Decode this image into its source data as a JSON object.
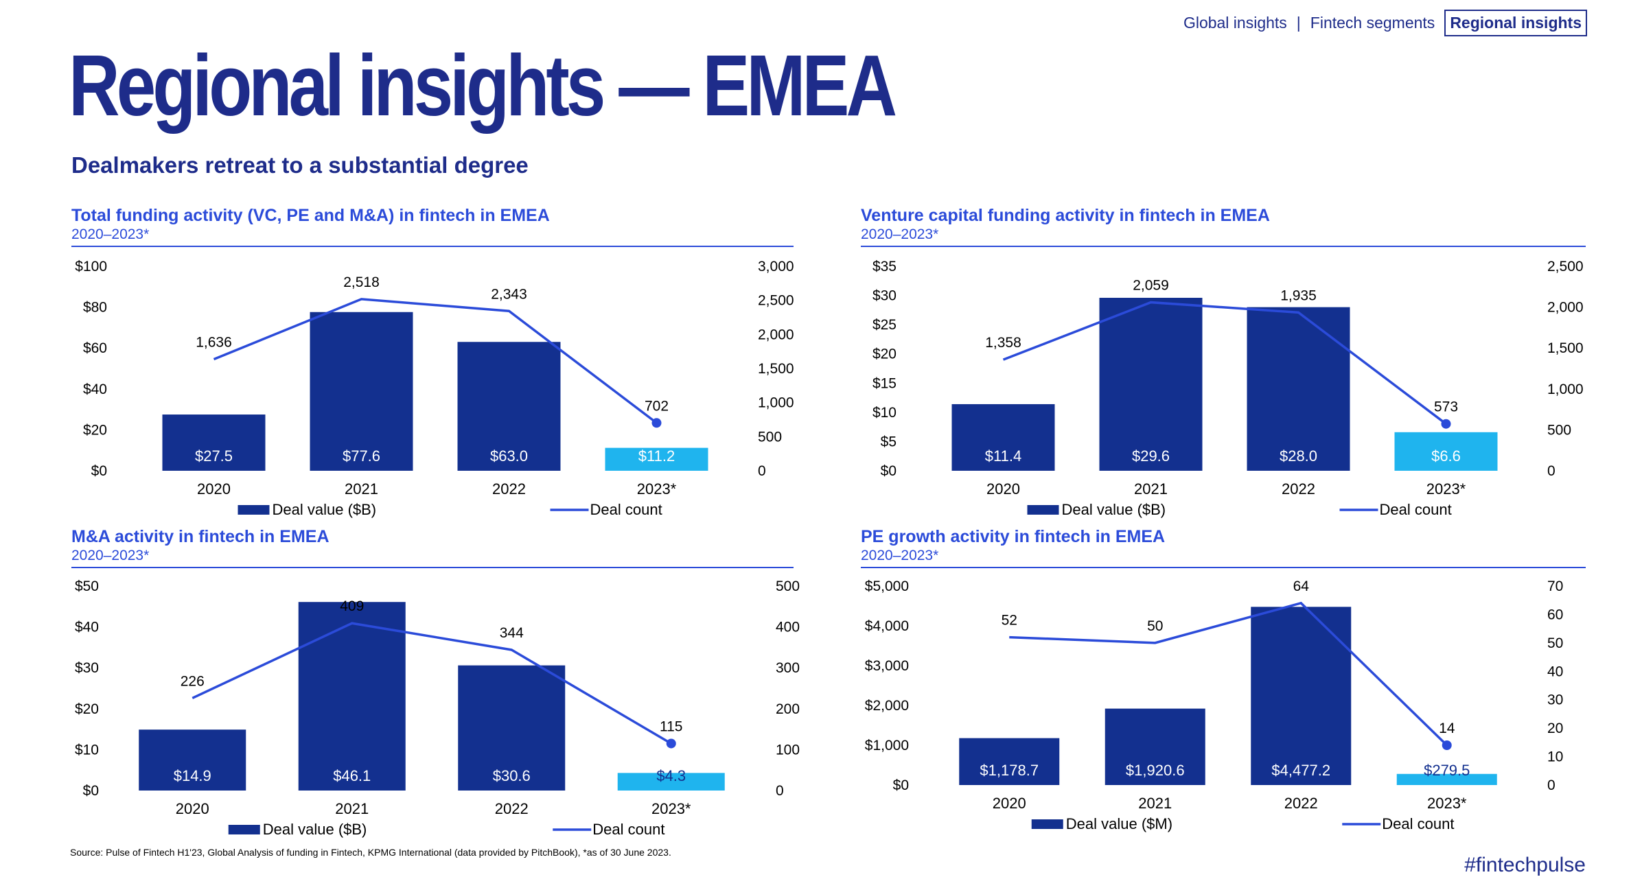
{
  "nav": {
    "items": [
      "Global insights",
      "Fintech segments",
      "Regional insights"
    ],
    "separator": "|",
    "active_index": 2
  },
  "page": {
    "title": "Regional insights — EMEA",
    "subtitle": "Dealmakers retreat to a substantial degree",
    "source": "Source: Pulse of Fintech H1'23, Global Analysis of funding in Fintech, KPMG International (data provided by PitchBook), *as of 30 June 2023.",
    "hashtag": "#fintechpulse"
  },
  "colors": {
    "brand_dark": "#1e2c8a",
    "accent_blue": "#2b4bd9",
    "bar_dark": "#13308f",
    "bar_highlight": "#1fb4ee",
    "line": "#2b4bd9"
  },
  "chart_data": [
    {
      "type": "bar",
      "title": "Total funding activity (VC, PE and M&A) in fintech in EMEA",
      "subtitle": "2020–2023*",
      "categories": [
        "2020",
        "2021",
        "2022",
        "2023*"
      ],
      "series": [
        {
          "name": "Deal value ($B)",
          "type": "bar",
          "axis": "left",
          "values": [
            27.5,
            77.6,
            63.0,
            11.2
          ],
          "labels": [
            "$27.5",
            "$77.6",
            "$63.0",
            "$11.2"
          ]
        },
        {
          "name": "Deal count",
          "type": "line",
          "axis": "right",
          "values": [
            1636,
            2518,
            2343,
            702
          ],
          "labels": [
            "1,636",
            "2,518",
            "2,343",
            "702"
          ]
        }
      ],
      "ylim_left": [
        0,
        100
      ],
      "yticks_left": [
        "$0",
        "$20",
        "$40",
        "$60",
        "$80",
        "$100"
      ],
      "ylim_right": [
        0,
        3000
      ],
      "yticks_right": [
        "0",
        "500",
        "1,000",
        "1,500",
        "2,000",
        "2,500",
        "3,000"
      ],
      "highlight_index": 3,
      "legend_position": "bottom"
    },
    {
      "type": "bar",
      "title": "Venture capital funding activity in fintech in EMEA",
      "subtitle": "2020–2023*",
      "categories": [
        "2020",
        "2021",
        "2022",
        "2023*"
      ],
      "series": [
        {
          "name": "Deal value ($B)",
          "type": "bar",
          "axis": "left",
          "values": [
            11.4,
            29.6,
            28.0,
            6.6
          ],
          "labels": [
            "$11.4",
            "$29.6",
            "$28.0",
            "$6.6"
          ]
        },
        {
          "name": "Deal count",
          "type": "line",
          "axis": "right",
          "values": [
            1358,
            2059,
            1935,
            573
          ],
          "labels": [
            "1,358",
            "2,059",
            "1,935",
            "573"
          ]
        }
      ],
      "ylim_left": [
        0,
        35
      ],
      "yticks_left": [
        "$0",
        "$5",
        "$10",
        "$15",
        "$20",
        "$25",
        "$30",
        "$35"
      ],
      "ylim_right": [
        0,
        2500
      ],
      "yticks_right": [
        "0",
        "500",
        "1,000",
        "1,500",
        "2,000",
        "2,500"
      ],
      "highlight_index": 3,
      "legend_position": "bottom"
    },
    {
      "type": "bar",
      "title": "M&A activity in fintech in EMEA",
      "subtitle": "2020–2023*",
      "categories": [
        "2020",
        "2021",
        "2022",
        "2023*"
      ],
      "series": [
        {
          "name": "Deal value ($B)",
          "type": "bar",
          "axis": "left",
          "values": [
            14.9,
            46.1,
            30.6,
            4.3
          ],
          "labels": [
            "$14.9",
            "$46.1",
            "$30.6",
            "$4.3"
          ]
        },
        {
          "name": "Deal count",
          "type": "line",
          "axis": "right",
          "values": [
            226,
            409,
            344,
            115
          ],
          "labels": [
            "226",
            "409",
            "344",
            "115"
          ]
        }
      ],
      "ylim_left": [
        0,
        50
      ],
      "yticks_left": [
        "$0",
        "$10",
        "$20",
        "$30",
        "$40",
        "$50"
      ],
      "ylim_right": [
        0,
        500
      ],
      "yticks_right": [
        "0",
        "100",
        "200",
        "300",
        "400",
        "500"
      ],
      "highlight_index": 3,
      "legend_position": "bottom"
    },
    {
      "type": "bar",
      "title": "PE growth activity in fintech in EMEA",
      "subtitle": "2020–2023*",
      "categories": [
        "2020",
        "2021",
        "2022",
        "2023*"
      ],
      "series": [
        {
          "name": "Deal value ($M)",
          "type": "bar",
          "axis": "left",
          "values": [
            1178.7,
            1920.6,
            4477.2,
            279.5
          ],
          "labels": [
            "$1,178.7",
            "$1,920.6",
            "$4,477.2",
            "$279.5"
          ]
        },
        {
          "name": "Deal count",
          "type": "line",
          "axis": "right",
          "values": [
            52,
            50,
            64,
            14
          ],
          "labels": [
            "52",
            "50",
            "64",
            "14"
          ]
        }
      ],
      "ylim_left": [
        0,
        5000
      ],
      "yticks_left": [
        "$0",
        "$1,000",
        "$2,000",
        "$3,000",
        "$4,000",
        "$5,000"
      ],
      "ylim_right": [
        0,
        70
      ],
      "yticks_right": [
        "0",
        "10",
        "20",
        "30",
        "40",
        "50",
        "60",
        "70"
      ],
      "highlight_index": 3,
      "legend_position": "bottom"
    }
  ]
}
